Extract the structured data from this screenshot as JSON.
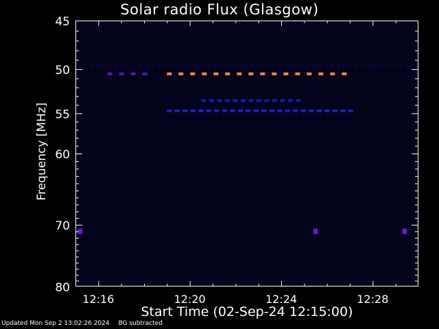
{
  "chart_data": {
    "type": "heatmap",
    "title": "Solar radio Flux (Glasgow)",
    "xlabel": "Start Time (02-Sep-24 12:15:00)",
    "ylabel": "Frequency [MHz]",
    "x_ticks": [
      "12:16",
      "12:20",
      "12:24",
      "12:28"
    ],
    "x_tick_minutes": [
      1,
      5,
      9,
      13
    ],
    "x_range_minutes": [
      0,
      15.0
    ],
    "y_ticks": [
      45,
      50,
      55,
      60,
      70,
      80
    ],
    "y_range_mhz": [
      45,
      80
    ],
    "y_scale": "log",
    "background_color": "#03031a",
    "signals": [
      {
        "freq_mhz": 50.5,
        "start_min": 1.4,
        "end_min": 3.4,
        "color": "#5a14b4",
        "label": "purple band"
      },
      {
        "freq_mhz": 50.5,
        "start_min": 4.0,
        "end_min": 12.0,
        "color": "#ff8a3c",
        "label": "orange band"
      },
      {
        "freq_mhz": 53.5,
        "start_min": 5.5,
        "end_min": 10.0,
        "color": "#1a1aa8",
        "label": "blue band 53.5"
      },
      {
        "freq_mhz": 54.7,
        "start_min": 4.0,
        "end_min": 12.0,
        "color": "#1f1fd0",
        "label": "blue band 54.7"
      },
      {
        "freq_mhz": 49.6,
        "start_min": 0.0,
        "end_min": 15.0,
        "color": "#0a0a4a",
        "label": "faint line 49.6"
      },
      {
        "freq_mhz": 71.0,
        "start_min": 0.1,
        "end_min": 0.3,
        "color": "#6a18c8",
        "label": "spot 1"
      },
      {
        "freq_mhz": 71.0,
        "start_min": 10.4,
        "end_min": 10.6,
        "color": "#6a18c8",
        "label": "spot 2"
      },
      {
        "freq_mhz": 71.0,
        "start_min": 14.3,
        "end_min": 14.5,
        "color": "#6a18c8",
        "label": "spot 3"
      }
    ]
  },
  "footer": {
    "updated": "Updated Mon Sep  2 13:02:26 2024",
    "note": "BG subtracted"
  }
}
